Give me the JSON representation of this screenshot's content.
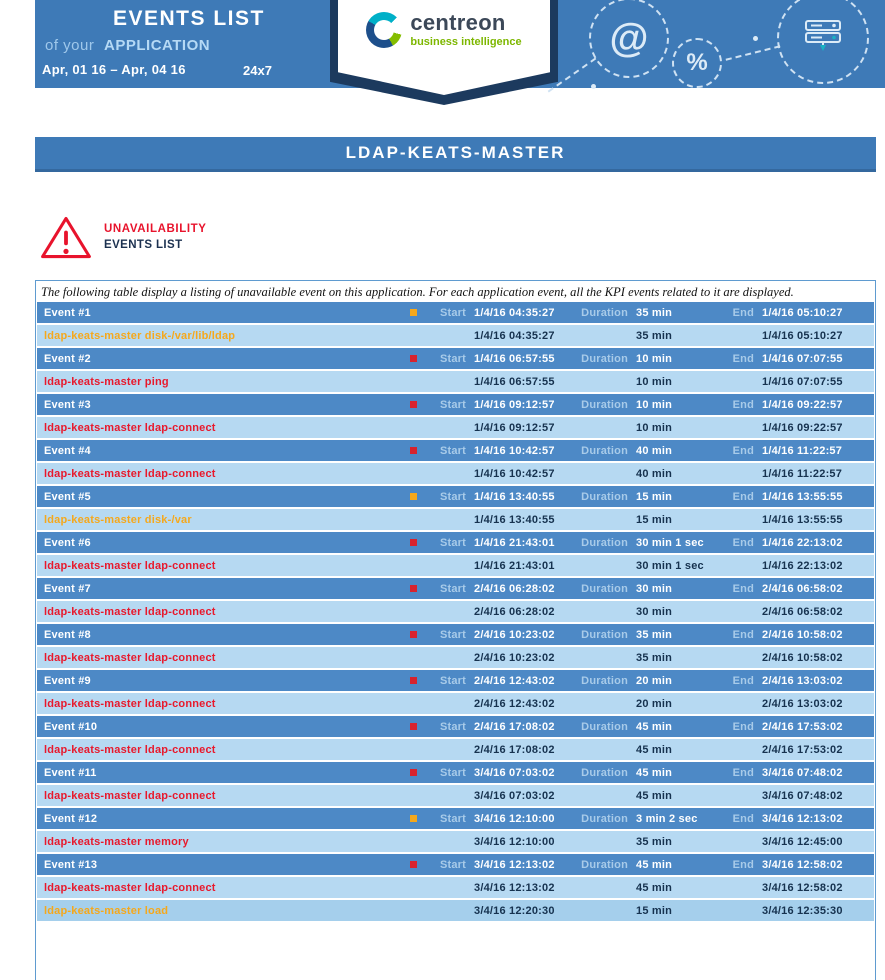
{
  "header": {
    "title": "EVENTS LIST",
    "subtitle_prefix": "of your",
    "subtitle": "APPLICATION",
    "date_range": "Apr, 01 16 – Apr, 04 16",
    "schedule": "24x7",
    "logo": {
      "name": "centreon",
      "tagline": "business intelligence"
    }
  },
  "page_title": "LDAP-KEATS-MASTER",
  "section": {
    "warning_line1": "UNAVAILABILITY",
    "warning_line2": "EVENTS LIST"
  },
  "description": "The following table display a listing of unavailable event on this application. For each application event, all the KPI events related to it are displayed.",
  "colors": {
    "band_blue": "#3e7ab7",
    "event_row_blue": "#4d89c6",
    "kpi_row_blue": "#b6d9f2",
    "warning_orange": "#f5a81c",
    "critical_red": "#e8192c",
    "navy_text": "#16324f"
  },
  "table": {
    "labels": {
      "start": "Start",
      "duration": "Duration",
      "end": "End"
    },
    "events": [
      {
        "name": "Event #1",
        "severity": "warning",
        "start": "1/4/16 04:35:27",
        "duration": "35 min",
        "end": "1/4/16 05:10:27",
        "kpis": [
          {
            "name": "ldap-keats-master disk-/var/lib/ldap",
            "severity": "warning",
            "start": "1/4/16 04:35:27",
            "duration": "35 min",
            "end": "1/4/16 05:10:27"
          }
        ]
      },
      {
        "name": "Event #2",
        "severity": "critical",
        "start": "1/4/16 06:57:55",
        "duration": "10 min",
        "end": "1/4/16 07:07:55",
        "kpis": [
          {
            "name": "ldap-keats-master ping",
            "severity": "critical",
            "start": "1/4/16 06:57:55",
            "duration": "10 min",
            "end": "1/4/16 07:07:55"
          }
        ]
      },
      {
        "name": "Event #3",
        "severity": "critical",
        "start": "1/4/16 09:12:57",
        "duration": "10 min",
        "end": "1/4/16 09:22:57",
        "kpis": [
          {
            "name": "ldap-keats-master ldap-connect",
            "severity": "critical",
            "start": "1/4/16 09:12:57",
            "duration": "10 min",
            "end": "1/4/16 09:22:57"
          }
        ]
      },
      {
        "name": "Event #4",
        "severity": "critical",
        "start": "1/4/16 10:42:57",
        "duration": "40 min",
        "end": "1/4/16 11:22:57",
        "kpis": [
          {
            "name": "ldap-keats-master ldap-connect",
            "severity": "critical",
            "start": "1/4/16 10:42:57",
            "duration": "40 min",
            "end": "1/4/16 11:22:57"
          }
        ]
      },
      {
        "name": "Event #5",
        "severity": "warning",
        "start": "1/4/16 13:40:55",
        "duration": "15 min",
        "end": "1/4/16 13:55:55",
        "kpis": [
          {
            "name": "ldap-keats-master disk-/var",
            "severity": "warning",
            "start": "1/4/16 13:40:55",
            "duration": "15 min",
            "end": "1/4/16 13:55:55"
          }
        ]
      },
      {
        "name": "Event #6",
        "severity": "critical",
        "start": "1/4/16 21:43:01",
        "duration": "30 min 1 sec",
        "end": "1/4/16 22:13:02",
        "kpis": [
          {
            "name": "ldap-keats-master ldap-connect",
            "severity": "critical",
            "start": "1/4/16 21:43:01",
            "duration": "30 min 1 sec",
            "end": "1/4/16 22:13:02"
          }
        ]
      },
      {
        "name": "Event #7",
        "severity": "critical",
        "start": "2/4/16 06:28:02",
        "duration": "30 min",
        "end": "2/4/16 06:58:02",
        "kpis": [
          {
            "name": "ldap-keats-master ldap-connect",
            "severity": "critical",
            "start": "2/4/16 06:28:02",
            "duration": "30 min",
            "end": "2/4/16 06:58:02"
          }
        ]
      },
      {
        "name": "Event #8",
        "severity": "critical",
        "start": "2/4/16 10:23:02",
        "duration": "35 min",
        "end": "2/4/16 10:58:02",
        "kpis": [
          {
            "name": "ldap-keats-master ldap-connect",
            "severity": "critical",
            "start": "2/4/16 10:23:02",
            "duration": "35 min",
            "end": "2/4/16 10:58:02"
          }
        ]
      },
      {
        "name": "Event #9",
        "severity": "critical",
        "start": "2/4/16 12:43:02",
        "duration": "20 min",
        "end": "2/4/16 13:03:02",
        "kpis": [
          {
            "name": "ldap-keats-master ldap-connect",
            "severity": "critical",
            "start": "2/4/16 12:43:02",
            "duration": "20 min",
            "end": "2/4/16 13:03:02"
          }
        ]
      },
      {
        "name": "Event #10",
        "severity": "critical",
        "start": "2/4/16 17:08:02",
        "duration": "45 min",
        "end": "2/4/16 17:53:02",
        "kpis": [
          {
            "name": "ldap-keats-master ldap-connect",
            "severity": "critical",
            "start": "2/4/16 17:08:02",
            "duration": "45 min",
            "end": "2/4/16 17:53:02"
          }
        ]
      },
      {
        "name": "Event #11",
        "severity": "critical",
        "start": "3/4/16 07:03:02",
        "duration": "45 min",
        "end": "3/4/16 07:48:02",
        "kpis": [
          {
            "name": "ldap-keats-master ldap-connect",
            "severity": "critical",
            "start": "3/4/16 07:03:02",
            "duration": "45 min",
            "end": "3/4/16 07:48:02"
          }
        ]
      },
      {
        "name": "Event #12",
        "severity": "warning",
        "start": "3/4/16 12:10:00",
        "duration": "3 min 2 sec",
        "end": "3/4/16 12:13:02",
        "kpis": [
          {
            "name": "ldap-keats-master memory",
            "severity": "critical",
            "start": "3/4/16 12:10:00",
            "duration": "35 min",
            "end": "3/4/16 12:45:00"
          }
        ]
      },
      {
        "name": "Event #13",
        "severity": "critical",
        "start": "3/4/16 12:13:02",
        "duration": "45 min",
        "end": "3/4/16 12:58:02",
        "kpis": [
          {
            "name": "ldap-keats-master ldap-connect",
            "severity": "critical",
            "start": "3/4/16 12:13:02",
            "duration": "45 min",
            "end": "3/4/16 12:58:02"
          },
          {
            "name": "ldap-keats-master load",
            "severity": "warning",
            "start": "3/4/16 12:20:30",
            "duration": "15 min",
            "end": "3/4/16 12:35:30"
          }
        ]
      }
    ]
  }
}
